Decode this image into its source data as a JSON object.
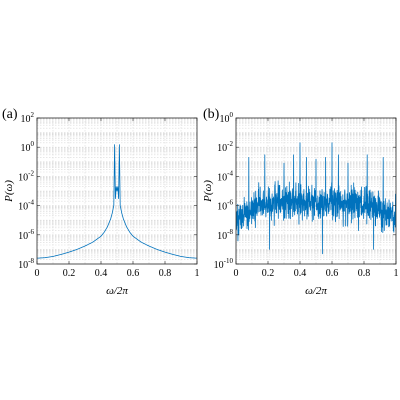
{
  "chart_data": [
    {
      "panel_label": "(a)",
      "type": "line",
      "xlabel": "ω/2π",
      "ylabel": "P(ω)",
      "xlim": [
        0,
        1
      ],
      "ylim_log10": [
        -8,
        2
      ],
      "yscale": "log",
      "grid": true,
      "color": "#0072BD",
      "x_ticks": [
        "0",
        "0.2",
        "0.4",
        "0.6",
        "0.8",
        "1"
      ],
      "y_ticks": [
        {
          "base": "10",
          "exp": "2"
        },
        {
          "base": "10",
          "exp": "0"
        },
        {
          "base": "10",
          "exp": "-2"
        },
        {
          "base": "10",
          "exp": "-4"
        },
        {
          "base": "10",
          "exp": "-6"
        },
        {
          "base": "10",
          "exp": "-8"
        }
      ],
      "series": [
        {
          "x": [
            0.0,
            0.05,
            0.1,
            0.15,
            0.2,
            0.25,
            0.3,
            0.35,
            0.4,
            0.42,
            0.44,
            0.46,
            0.47,
            0.48,
            0.485,
            0.49,
            0.495,
            0.5,
            0.505,
            0.51,
            0.515,
            0.52,
            0.53,
            0.54,
            0.56,
            0.58,
            0.6,
            0.65,
            0.7,
            0.75,
            0.8,
            0.85,
            0.9,
            0.95,
            1.0
          ],
          "y": [
            2.5e-08,
            2.7e-08,
            3.3e-08,
            4.5e-08,
            6.5e-08,
            1e-07,
            1.7e-07,
            3.2e-07,
            8e-07,
            1.5e-06,
            3.5e-06,
            1.2e-05,
            3e-05,
            0.0001,
            1.5,
            0.0003,
            0.002,
            0.001,
            0.002,
            0.0003,
            1.5,
            0.0001,
            3e-05,
            1.2e-05,
            3.5e-06,
            1.5e-06,
            8e-07,
            3.2e-07,
            1.7e-07,
            1e-07,
            6.5e-08,
            4.5e-08,
            3.3e-08,
            2.7e-08,
            2.5e-08
          ]
        }
      ]
    },
    {
      "panel_label": "(b)",
      "type": "line",
      "xlabel": "ω/2π",
      "ylabel": "P(ω)",
      "xlim": [
        0,
        1
      ],
      "ylim_log10": [
        -10,
        0
      ],
      "yscale": "log",
      "grid": true,
      "color": "#0072BD",
      "x_ticks": [
        "0",
        "0.2",
        "0.4",
        "0.6",
        "0.8",
        "1"
      ],
      "y_ticks": [
        {
          "base": "10",
          "exp": "0"
        },
        {
          "base": "10",
          "exp": "-2"
        },
        {
          "base": "10",
          "exp": "-4"
        },
        {
          "base": "10",
          "exp": "-6"
        },
        {
          "base": "10",
          "exp": "-8"
        },
        {
          "base": "10",
          "exp": "-10"
        }
      ],
      "series": [
        {
          "envelope": "broadband noise, typical level ~1e-6 between 0.1 and 0.9, ~1e-7 near edges",
          "x": [
            0.0,
            0.05,
            0.1,
            0.15,
            0.2,
            0.25,
            0.3,
            0.35,
            0.4,
            0.45,
            0.5,
            0.55,
            0.6,
            0.65,
            0.7,
            0.75,
            0.8,
            0.85,
            0.9,
            0.95,
            1.0
          ],
          "y": [
            1e-07,
            2e-07,
            5e-07,
            1e-06,
            1.2e-06,
            1.5e-06,
            1.5e-06,
            1.5e-06,
            2e-06,
            1.5e-06,
            1.5e-06,
            1.5e-06,
            2e-06,
            1.5e-06,
            1.5e-06,
            1.5e-06,
            1.2e-06,
            1e-06,
            5e-07,
            2e-07,
            1e-07
          ]
        }
      ],
      "peaks": [
        {
          "x": 0.08,
          "y": 0.002
        },
        {
          "x": 0.18,
          "y": 0.003
        },
        {
          "x": 0.3,
          "y": 0.0008
        },
        {
          "x": 0.36,
          "y": 0.003
        },
        {
          "x": 0.4,
          "y": 0.02
        },
        {
          "x": 0.44,
          "y": 0.002
        },
        {
          "x": 0.5,
          "y": 0.0015
        },
        {
          "x": 0.56,
          "y": 0.002
        },
        {
          "x": 0.6,
          "y": 0.02
        },
        {
          "x": 0.64,
          "y": 0.003
        },
        {
          "x": 0.7,
          "y": 0.0008
        },
        {
          "x": 0.82,
          "y": 0.003
        },
        {
          "x": 0.92,
          "y": 0.002
        }
      ],
      "dips": [
        {
          "x": 0.54,
          "y": 5e-10
        },
        {
          "x": 0.86,
          "y": 1e-09
        },
        {
          "x": 0.21,
          "y": 1e-09
        }
      ]
    }
  ]
}
